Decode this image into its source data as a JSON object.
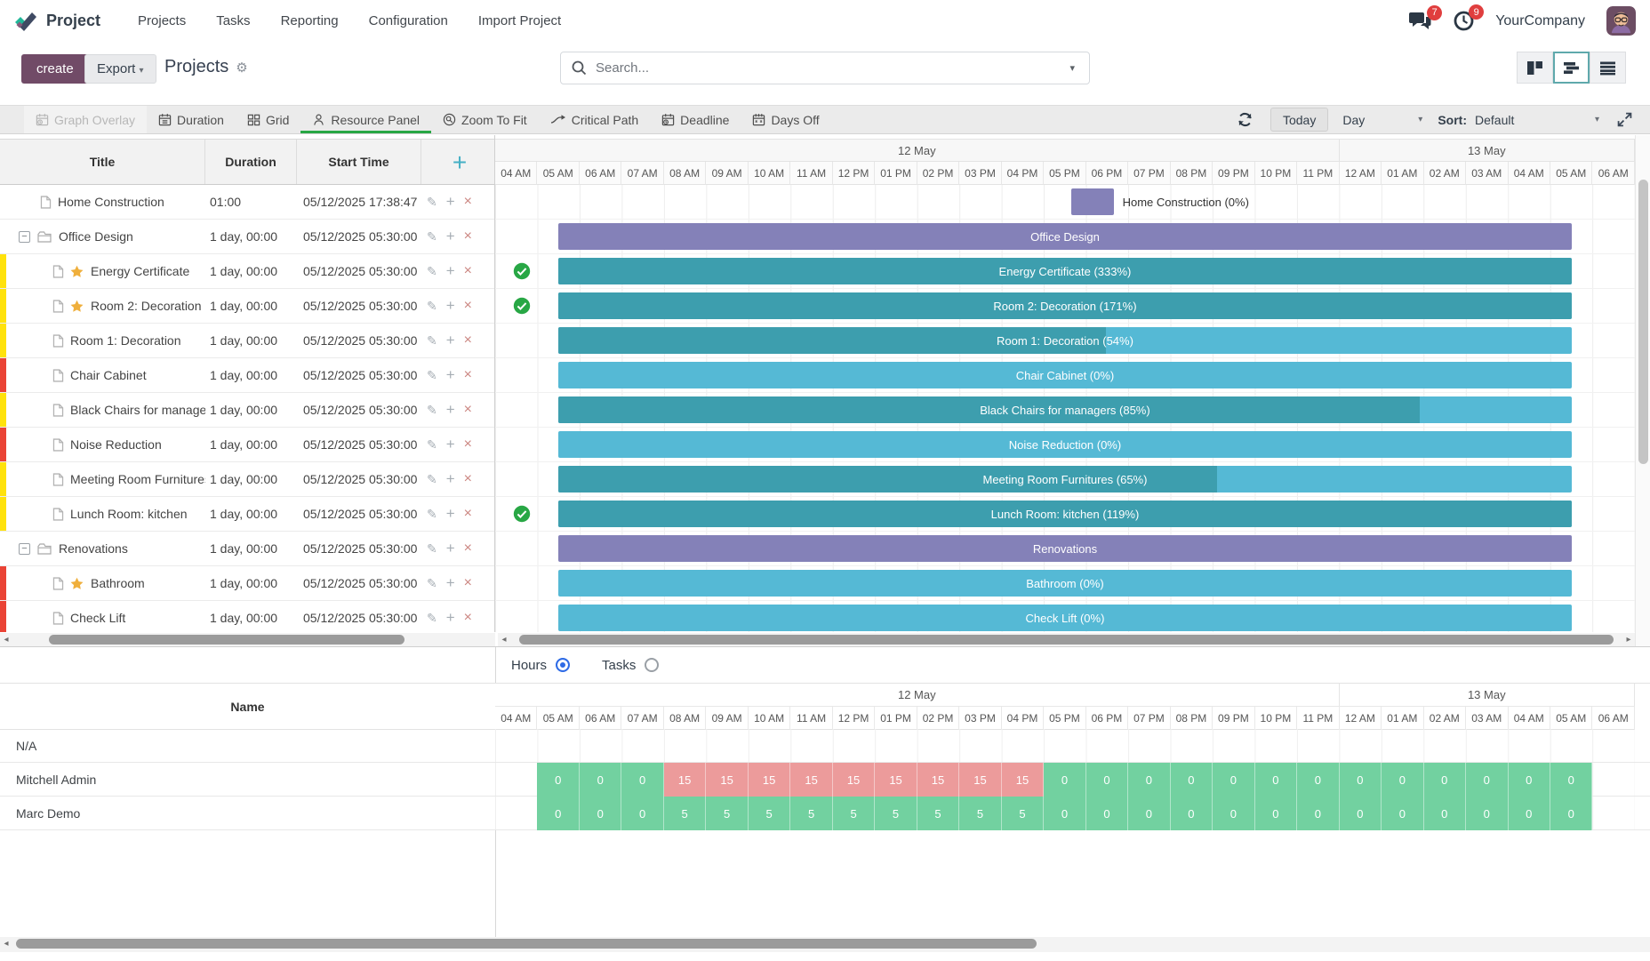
{
  "nav": {
    "app": "Project",
    "items": [
      "Projects",
      "Tasks",
      "Reporting",
      "Configuration",
      "Import Project"
    ],
    "company": "YourCompany",
    "badges": {
      "messages": "7",
      "activities": "9"
    }
  },
  "controlbar": {
    "create": "create",
    "export": "Export",
    "title": "Projects",
    "search_placeholder": "Search..."
  },
  "ganttbar": {
    "buttons": [
      {
        "label": "Graph Overlay",
        "icon": "calendar-clock-icon",
        "disabled": true,
        "active": false
      },
      {
        "label": "Duration",
        "icon": "calendar-icon",
        "disabled": false,
        "active": false
      },
      {
        "label": "Grid",
        "icon": "grid-icon",
        "disabled": false,
        "active": false
      },
      {
        "label": "Resource Panel",
        "icon": "person-icon",
        "disabled": false,
        "active": true
      },
      {
        "label": "Zoom To Fit",
        "icon": "magnifier-icon",
        "disabled": false,
        "active": false
      },
      {
        "label": "Critical Path",
        "icon": "arrow-icon",
        "disabled": false,
        "active": false
      },
      {
        "label": "Deadline",
        "icon": "calendar-clock-icon",
        "disabled": false,
        "active": false
      },
      {
        "label": "Days Off",
        "icon": "calendar-x-icon",
        "disabled": false,
        "active": false
      }
    ],
    "today": "Today",
    "range": "Day",
    "sort_label": "Sort:",
    "sort_value": "Default"
  },
  "table": {
    "headers": [
      "Title",
      "Duration",
      "Start Time"
    ]
  },
  "timeline": {
    "days": [
      {
        "label": "12 May",
        "cols": 20
      },
      {
        "label": "13 May",
        "cols": 7
      }
    ],
    "hours": [
      "04 AM",
      "05 AM",
      "06 AM",
      "07 AM",
      "08 AM",
      "09 AM",
      "10 AM",
      "11 AM",
      "12 PM",
      "01 PM",
      "02 PM",
      "03 PM",
      "04 PM",
      "05 PM",
      "06 PM",
      "07 PM",
      "08 PM",
      "09 PM",
      "10 PM",
      "11 PM",
      "12 AM",
      "01 AM",
      "02 AM",
      "03 AM",
      "04 AM",
      "05 AM",
      "06 AM"
    ]
  },
  "tasks": [
    {
      "title": "Home Construction",
      "duration": "01:00",
      "start": "05/12/2025 17:38:47",
      "kind": "top",
      "strip": null,
      "star": false,
      "check": false,
      "bar": {
        "label": "Home Construction (0%)",
        "type": "purple",
        "progress": 0,
        "start_hour": 13.65,
        "length_hours": 1,
        "label_outside": true
      }
    },
    {
      "title": "Office Design",
      "duration": "1 day, 00:00",
      "start": "05/12/2025 05:30:00",
      "kind": "group",
      "strip": null,
      "star": false,
      "check": false,
      "bar": {
        "label": "Office Design",
        "type": "purple",
        "progress": 0,
        "start_hour": 1.5,
        "length_hours": 24,
        "label_outside": false
      }
    },
    {
      "title": "Energy Certificate",
      "duration": "1 day, 00:00",
      "start": "05/12/2025 05:30:00",
      "kind": "child",
      "strip": "yellow",
      "star": true,
      "check": true,
      "bar": {
        "label": "Energy Certificate (333%)",
        "type": "teal",
        "progress": 100,
        "start_hour": 1.5,
        "length_hours": 24,
        "label_outside": false
      }
    },
    {
      "title": "Room 2: Decoration",
      "duration": "1 day, 00:00",
      "start": "05/12/2025 05:30:00",
      "kind": "child",
      "strip": "yellow",
      "star": true,
      "check": true,
      "bar": {
        "label": "Room 2: Decoration (171%)",
        "type": "teal",
        "progress": 100,
        "start_hour": 1.5,
        "length_hours": 24,
        "label_outside": false
      }
    },
    {
      "title": "Room 1: Decoration",
      "duration": "1 day, 00:00",
      "start": "05/12/2025 05:30:00",
      "kind": "child",
      "strip": "yellow",
      "star": false,
      "check": false,
      "bar": {
        "label": "Room 1: Decoration (54%)",
        "type": "teal",
        "progress": 54,
        "start_hour": 1.5,
        "length_hours": 24,
        "label_outside": false
      }
    },
    {
      "title": "Chair Cabinet",
      "duration": "1 day, 00:00",
      "start": "05/12/2025 05:30:00",
      "kind": "child",
      "strip": "red",
      "star": false,
      "check": false,
      "bar": {
        "label": "Chair Cabinet (0%)",
        "type": "teal",
        "progress": 0,
        "start_hour": 1.5,
        "length_hours": 24,
        "label_outside": false
      }
    },
    {
      "title": "Black Chairs for managers",
      "duration": "1 day, 00:00",
      "start": "05/12/2025 05:30:00",
      "kind": "child",
      "strip": "yellow",
      "star": false,
      "check": false,
      "bar": {
        "label": "Black Chairs for managers (85%)",
        "type": "teal",
        "progress": 85,
        "start_hour": 1.5,
        "length_hours": 24,
        "label_outside": false
      }
    },
    {
      "title": "Noise Reduction",
      "duration": "1 day, 00:00",
      "start": "05/12/2025 05:30:00",
      "kind": "child",
      "strip": "red",
      "star": false,
      "check": false,
      "bar": {
        "label": "Noise Reduction (0%)",
        "type": "teal",
        "progress": 0,
        "start_hour": 1.5,
        "length_hours": 24,
        "label_outside": false
      }
    },
    {
      "title": "Meeting Room Furnitures",
      "duration": "1 day, 00:00",
      "start": "05/12/2025 05:30:00",
      "kind": "child",
      "strip": "yellow",
      "star": false,
      "check": false,
      "bar": {
        "label": "Meeting Room Furnitures (65%)",
        "type": "teal",
        "progress": 65,
        "start_hour": 1.5,
        "length_hours": 24,
        "label_outside": false
      }
    },
    {
      "title": "Lunch Room: kitchen",
      "duration": "1 day, 00:00",
      "start": "05/12/2025 05:30:00",
      "kind": "child",
      "strip": "yellow",
      "star": false,
      "check": true,
      "bar": {
        "label": "Lunch Room: kitchen (119%)",
        "type": "teal",
        "progress": 100,
        "start_hour": 1.5,
        "length_hours": 24,
        "label_outside": false
      }
    },
    {
      "title": "Renovations",
      "duration": "1 day, 00:00",
      "start": "05/12/2025 05:30:00",
      "kind": "group",
      "strip": null,
      "star": false,
      "check": false,
      "bar": {
        "label": "Renovations",
        "type": "purple",
        "progress": 0,
        "start_hour": 1.5,
        "length_hours": 24,
        "label_outside": false
      }
    },
    {
      "title": "Bathroom",
      "duration": "1 day, 00:00",
      "start": "05/12/2025 05:30:00",
      "kind": "child",
      "strip": "red",
      "star": true,
      "check": false,
      "bar": {
        "label": "Bathroom (0%)",
        "type": "teal",
        "progress": 0,
        "start_hour": 1.5,
        "length_hours": 24,
        "label_outside": false
      }
    },
    {
      "title": "Check Lift",
      "duration": "1 day, 00:00",
      "start": "05/12/2025 05:30:00",
      "kind": "child",
      "strip": "red",
      "star": false,
      "check": false,
      "bar": {
        "label": "Check Lift (0%)",
        "type": "teal",
        "progress": 0,
        "start_hour": 1.5,
        "length_hours": 24,
        "label_outside": false
      }
    }
  ],
  "resource_panel": {
    "mode_hours": "Hours",
    "mode_tasks": "Tasks",
    "selected_mode": "Hours",
    "name_header": "Name",
    "rows": [
      {
        "name": "N/A",
        "start_col": 1,
        "values": [],
        "colors": []
      },
      {
        "name": "Mitchell Admin",
        "start_col": 1,
        "values": [
          0,
          0,
          0,
          15,
          15,
          15,
          15,
          15,
          15,
          15,
          15,
          15,
          0,
          0,
          0,
          0,
          0,
          0,
          0,
          0,
          0,
          0,
          0,
          0,
          0
        ],
        "colors": [
          "green",
          "green",
          "green",
          "red",
          "red",
          "red",
          "red",
          "red",
          "red",
          "red",
          "red",
          "red",
          "green",
          "green",
          "green",
          "green",
          "green",
          "green",
          "green",
          "green",
          "green",
          "green",
          "green",
          "green",
          "green"
        ]
      },
      {
        "name": "Marc Demo",
        "start_col": 1,
        "values": [
          0,
          0,
          0,
          5,
          5,
          5,
          5,
          5,
          5,
          5,
          5,
          5,
          0,
          0,
          0,
          0,
          0,
          0,
          0,
          0,
          0,
          0,
          0,
          0,
          0
        ],
        "colors": [
          "green",
          "green",
          "green",
          "green",
          "green",
          "green",
          "green",
          "green",
          "green",
          "green",
          "green",
          "green",
          "green",
          "green",
          "green",
          "green",
          "green",
          "green",
          "green",
          "green",
          "green",
          "green",
          "green",
          "green",
          "green"
        ]
      }
    ]
  },
  "colors": {
    "accent_purple": "#714B67",
    "bar_purple": "#8481b8",
    "bar_teal_dark": "#3d9eae",
    "bar_teal_light": "#55b9d5",
    "strip_yellow": "#ffe20c",
    "strip_red": "#ea4335",
    "cell_green": "#72d1a0",
    "cell_red": "#ec9b9b",
    "badge_red": "#e03e3e",
    "active_green": "#28a745",
    "radio_blue": "#2e6be6"
  }
}
